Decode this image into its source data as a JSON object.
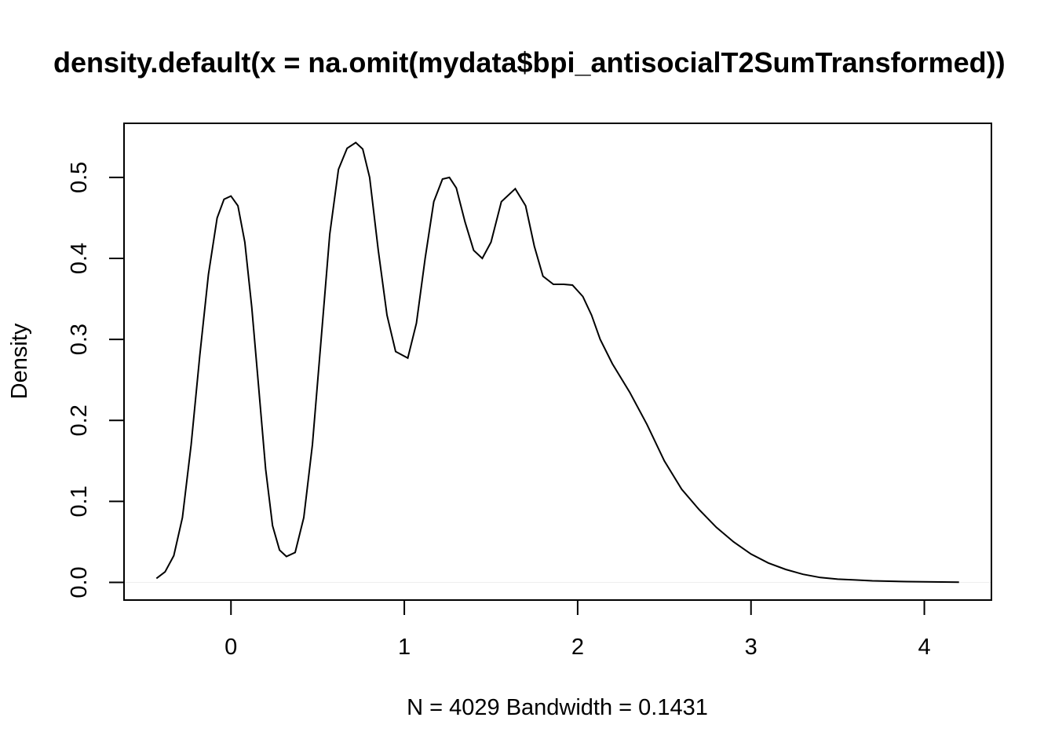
{
  "chart_data": {
    "type": "line",
    "title": "density.default(x = na.omit(mydata$bpi_antisocialT2SumTransformed))",
    "xlabel": "N = 4029   Bandwidth = 0.1431",
    "ylabel": "Density",
    "xlim": [
      -0.617,
      4.387
    ],
    "ylim": [
      -0.0218,
      0.5668
    ],
    "x_ticks": [
      0,
      1,
      2,
      3,
      4
    ],
    "x_tick_labels": [
      "0",
      "1",
      "2",
      "3",
      "4"
    ],
    "y_ticks": [
      0.0,
      0.1,
      0.2,
      0.3,
      0.4,
      0.5
    ],
    "y_tick_labels": [
      "0.0",
      "0.1",
      "0.2",
      "0.3",
      "0.4",
      "0.5"
    ],
    "grid": false,
    "series": [
      {
        "x": [
          -0.43,
          -0.38,
          -0.33,
          -0.28,
          -0.23,
          -0.18,
          -0.13,
          -0.08,
          -0.04,
          0.0,
          0.04,
          0.08,
          0.12,
          0.16,
          0.2,
          0.24,
          0.28,
          0.32,
          0.37,
          0.42,
          0.47,
          0.52,
          0.57,
          0.62,
          0.67,
          0.72,
          0.76,
          0.8,
          0.85,
          0.9,
          0.95,
          1.02,
          1.07,
          1.12,
          1.17,
          1.22,
          1.26,
          1.3,
          1.35,
          1.4,
          1.45,
          1.5,
          1.56,
          1.64,
          1.7,
          1.75,
          1.8,
          1.86,
          1.92,
          1.97,
          2.03,
          2.08,
          2.13,
          2.2,
          2.3,
          2.4,
          2.5,
          2.6,
          2.7,
          2.8,
          2.9,
          3.0,
          3.1,
          3.2,
          3.3,
          3.4,
          3.5,
          3.6,
          3.7,
          3.8,
          3.9,
          4.0,
          4.1,
          4.2
        ],
        "y": [
          0.005,
          0.013,
          0.033,
          0.08,
          0.17,
          0.28,
          0.38,
          0.45,
          0.473,
          0.477,
          0.465,
          0.42,
          0.34,
          0.24,
          0.14,
          0.07,
          0.04,
          0.032,
          0.037,
          0.08,
          0.17,
          0.3,
          0.43,
          0.51,
          0.536,
          0.543,
          0.535,
          0.5,
          0.41,
          0.33,
          0.285,
          0.277,
          0.32,
          0.4,
          0.47,
          0.498,
          0.5,
          0.487,
          0.445,
          0.41,
          0.4,
          0.42,
          0.47,
          0.486,
          0.465,
          0.415,
          0.378,
          0.368,
          0.368,
          0.367,
          0.353,
          0.33,
          0.3,
          0.27,
          0.235,
          0.195,
          0.15,
          0.115,
          0.09,
          0.068,
          0.05,
          0.035,
          0.024,
          0.016,
          0.01,
          0.006,
          0.004,
          0.003,
          0.002,
          0.0015,
          0.001,
          0.0008,
          0.0005,
          0.0003
        ]
      }
    ]
  }
}
